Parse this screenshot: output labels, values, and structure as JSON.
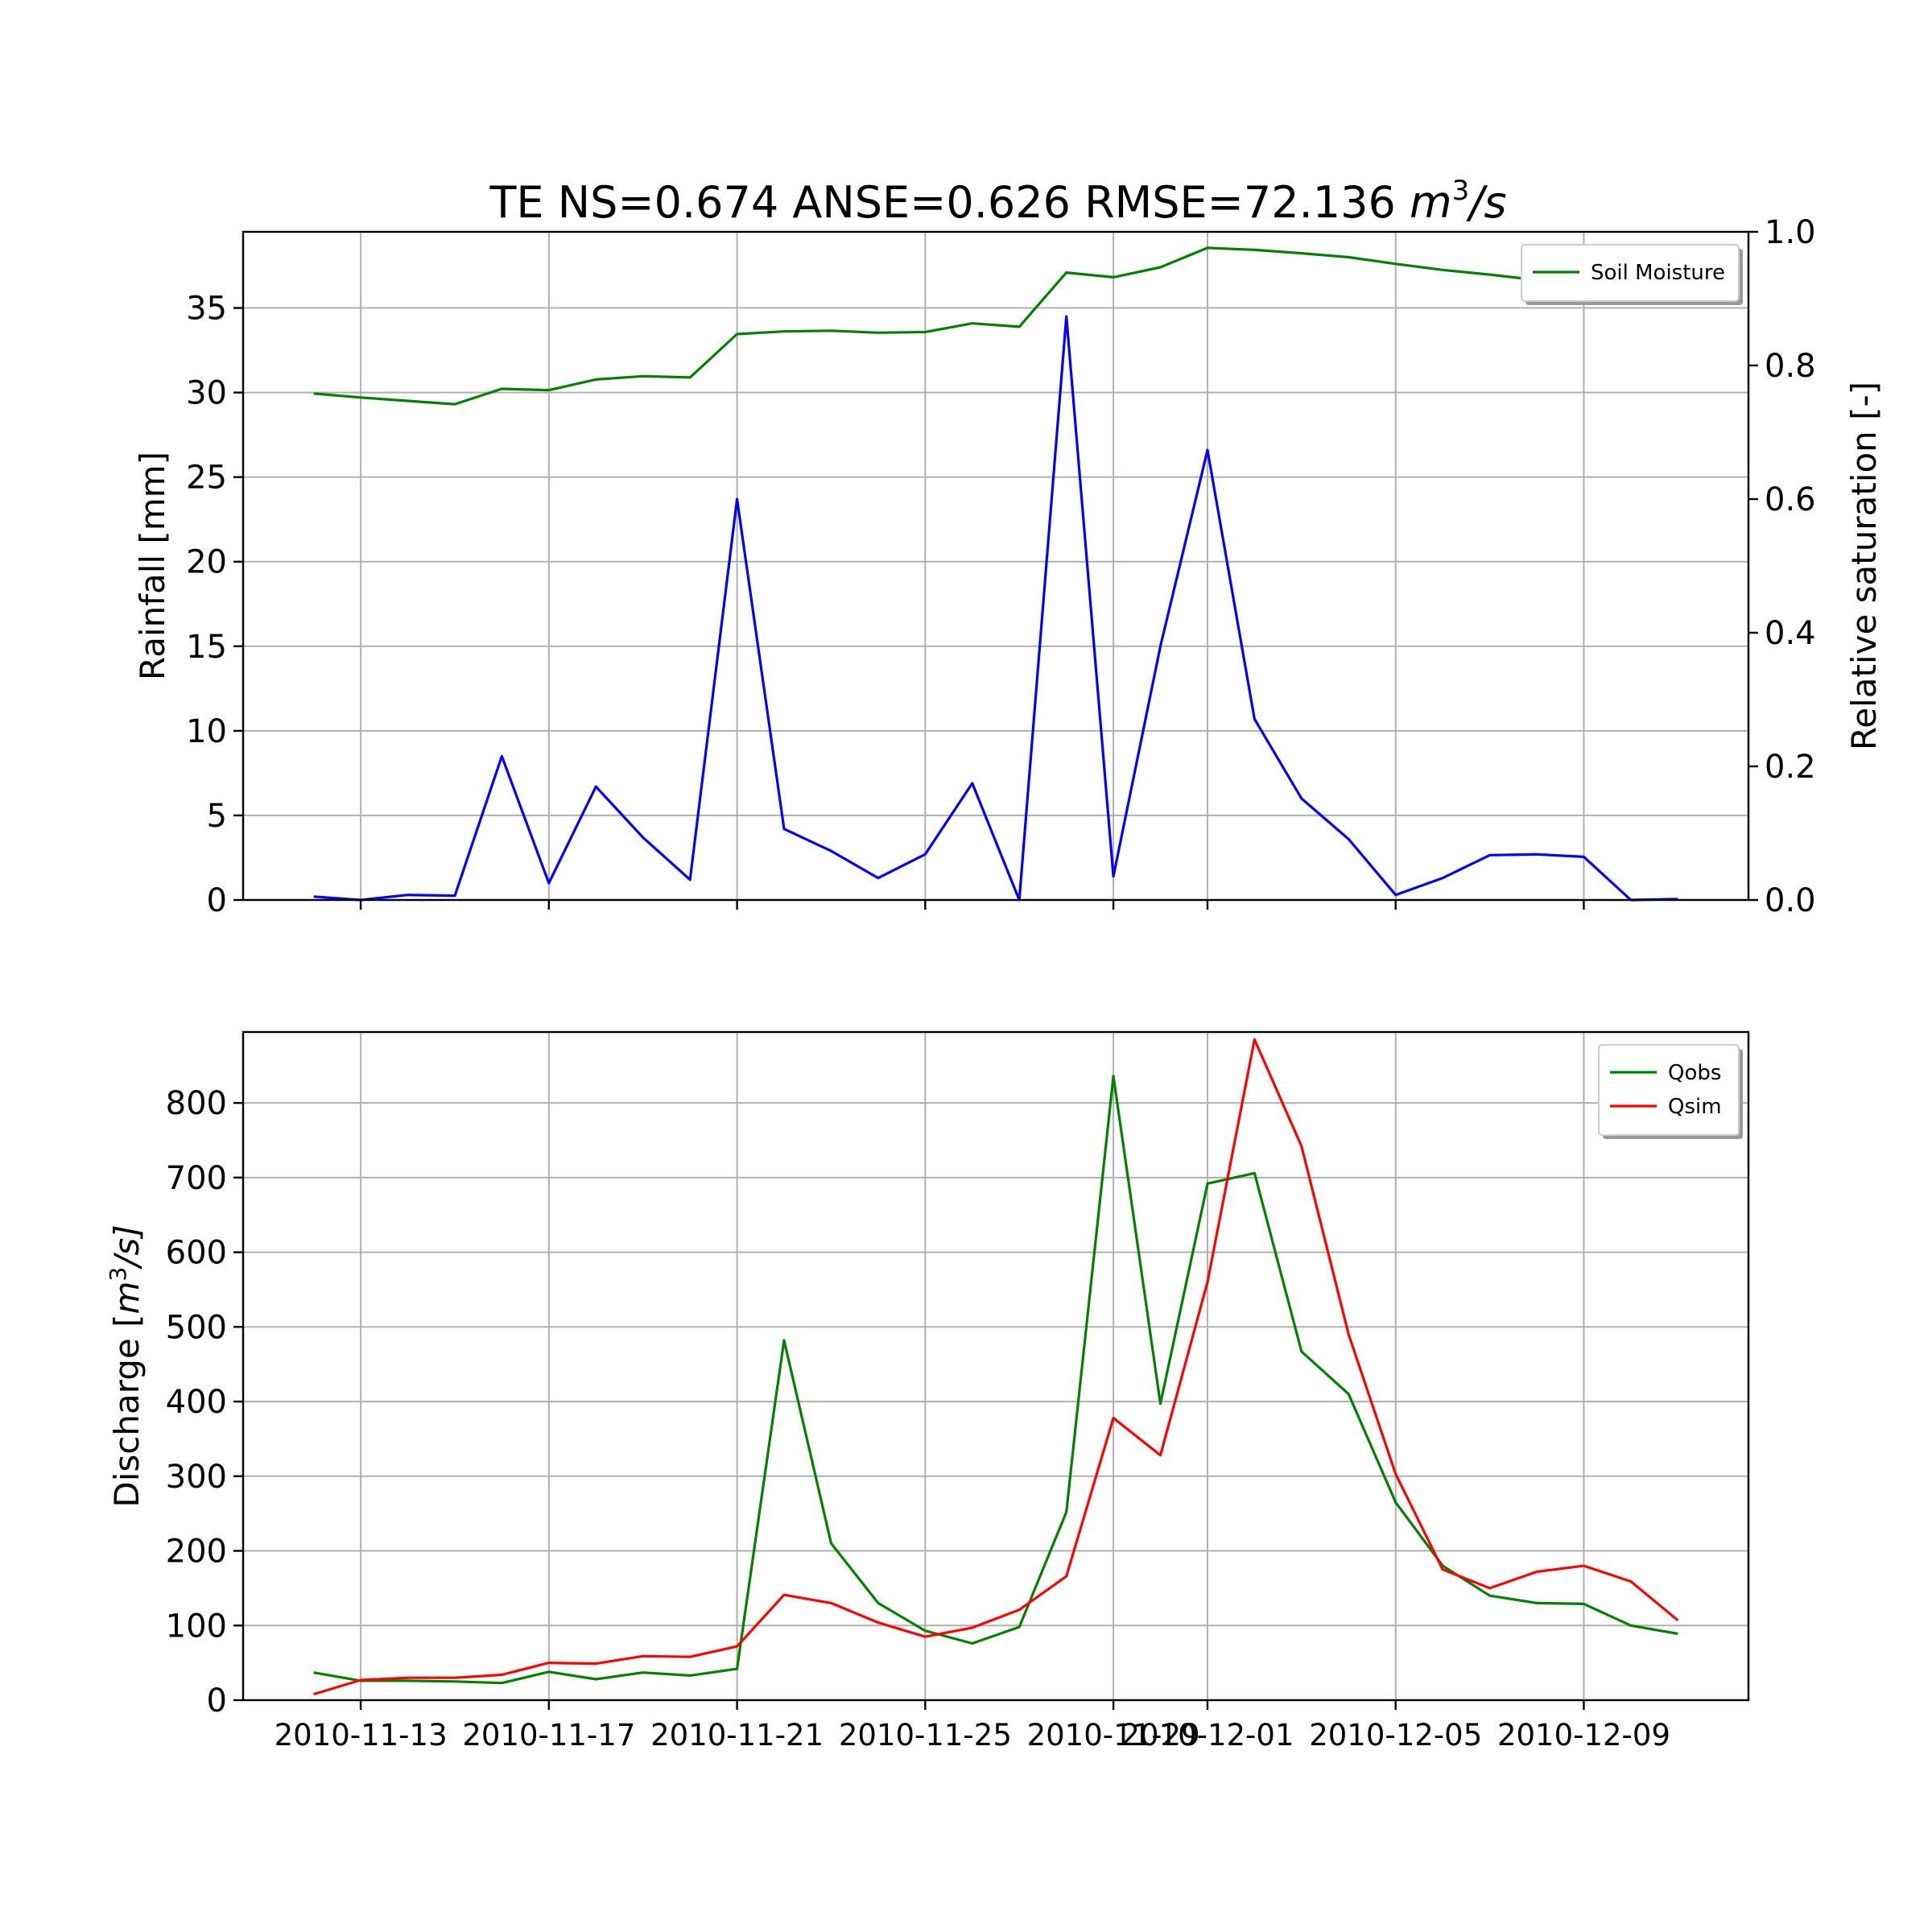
{
  "colors": {
    "rainfall": "#0000ff",
    "soil_moisture": "#008000",
    "qobs": "#008000",
    "qsim": "#ff0000",
    "grid": "#b0b0b0"
  },
  "chart_data": [
    {
      "type": "line",
      "title": "TE NS=0.674 ANSE=0.626 RMSE=72.136 m3/s",
      "title_parts": {
        "text": "TE NS=0.674 ANSE=0.626 RMSE=72.136 ",
        "unit_base": "m",
        "unit_exp": "3",
        "unit_tail": "/s"
      },
      "x": [
        "2010-11-12",
        "2010-11-13",
        "2010-11-14",
        "2010-11-15",
        "2010-11-16",
        "2010-11-17",
        "2010-11-18",
        "2010-11-19",
        "2010-11-20",
        "2010-11-21",
        "2010-11-22",
        "2010-11-23",
        "2010-11-24",
        "2010-11-25",
        "2010-11-26",
        "2010-11-27",
        "2010-11-28",
        "2010-11-29",
        "2010-11-30",
        "2010-12-01",
        "2010-12-02",
        "2010-12-03",
        "2010-12-04",
        "2010-12-05",
        "2010-12-06",
        "2010-12-07",
        "2010-12-08",
        "2010-12-09",
        "2010-12-10",
        "2010-12-11"
      ],
      "xlim": [
        "2010-11-10 12:00",
        "2010-12-12 12:00"
      ],
      "xticks": [
        "2010-11-13",
        "2010-11-17",
        "2010-11-21",
        "2010-11-25",
        "2010-11-29",
        "2010-12-01",
        "2010-12-05",
        "2010-12-09"
      ],
      "ylabel": "Rainfall [mm]",
      "ylim": [
        0,
        39.5
      ],
      "yticks": [
        "0",
        "5",
        "10",
        "15",
        "20",
        "25",
        "30",
        "35"
      ],
      "y2label": "Relative saturation [-]",
      "y2lim": [
        0,
        1.0
      ],
      "y2ticks": [
        "0.0",
        "0.2",
        "0.4",
        "0.6",
        "0.8",
        "1.0"
      ],
      "grid": true,
      "legend_position": "top-right",
      "series": [
        {
          "name": "",
          "axis": "left",
          "color": "#0000ff",
          "values": [
            0.2,
            0.0,
            0.3,
            0.25,
            8.5,
            1.0,
            6.7,
            3.7,
            1.2,
            23.7,
            4.2,
            2.9,
            1.3,
            2.7,
            6.9,
            0.0,
            34.5,
            1.4,
            15.0,
            26.6,
            10.7,
            6.0,
            3.6,
            0.3,
            1.3,
            2.65,
            2.7,
            2.55,
            0.0,
            0.05
          ]
        },
        {
          "name": "Soil Moisture",
          "axis": "right",
          "color": "#008000",
          "values": [
            0.758,
            0.752,
            0.747,
            0.742,
            0.765,
            0.763,
            0.779,
            0.784,
            0.782,
            0.847,
            0.851,
            0.852,
            0.849,
            0.85,
            0.863,
            0.858,
            0.939,
            0.932,
            0.947,
            0.976,
            0.973,
            0.968,
            0.962,
            0.952,
            0.943,
            0.936,
            0.928,
            0.922,
            0.914,
            0.906
          ]
        }
      ]
    },
    {
      "type": "line",
      "x": [
        "2010-11-12",
        "2010-11-13",
        "2010-11-14",
        "2010-11-15",
        "2010-11-16",
        "2010-11-17",
        "2010-11-18",
        "2010-11-19",
        "2010-11-20",
        "2010-11-21",
        "2010-11-22",
        "2010-11-23",
        "2010-11-24",
        "2010-11-25",
        "2010-11-26",
        "2010-11-27",
        "2010-11-28",
        "2010-11-29",
        "2010-11-30",
        "2010-12-01",
        "2010-12-02",
        "2010-12-03",
        "2010-12-04",
        "2010-12-05",
        "2010-12-06",
        "2010-12-07",
        "2010-12-08",
        "2010-12-09",
        "2010-12-10",
        "2010-12-11"
      ],
      "xlim": [
        "2010-11-10 12:00",
        "2010-12-12 12:00"
      ],
      "xticks": [
        "2010-11-13",
        "2010-11-17",
        "2010-11-21",
        "2010-11-25",
        "2010-11-29",
        "2010-12-01",
        "2010-12-05",
        "2010-12-09"
      ],
      "xtick_labels": [
        "2010-11-13",
        "2010-11-17",
        "2010-11-21",
        "2010-11-25",
        "2010-11-29",
        "2010-12-01",
        "2010-12-05",
        "2010-12-09"
      ],
      "ylabel": "Discharge [m3/s]",
      "ylabel_parts": {
        "text": "Discharge [",
        "unit_base": "m",
        "unit_exp": "3",
        "unit_tail": "/s]"
      },
      "ylim": [
        0,
        895
      ],
      "yticks": [
        "0",
        "100",
        "200",
        "300",
        "400",
        "500",
        "600",
        "700",
        "800"
      ],
      "grid": true,
      "legend_position": "top-right",
      "series": [
        {
          "name": "Qobs",
          "color": "#008000",
          "values": [
            37,
            26,
            26,
            25,
            23,
            38,
            28,
            37,
            33,
            42,
            482,
            210,
            130,
            93,
            76,
            98,
            252,
            836,
            397,
            692,
            706,
            467,
            410,
            265,
            180,
            140,
            130,
            129,
            100,
            89
          ]
        },
        {
          "name": "Qsim",
          "color": "#ff0000",
          "values": [
            8,
            27,
            30,
            30,
            34,
            50,
            49,
            59,
            58,
            72,
            141,
            130,
            104,
            85,
            97,
            121,
            166,
            378,
            328,
            560,
            885,
            742,
            490,
            303,
            175,
            150,
            172,
            180,
            159,
            107
          ]
        }
      ]
    }
  ]
}
